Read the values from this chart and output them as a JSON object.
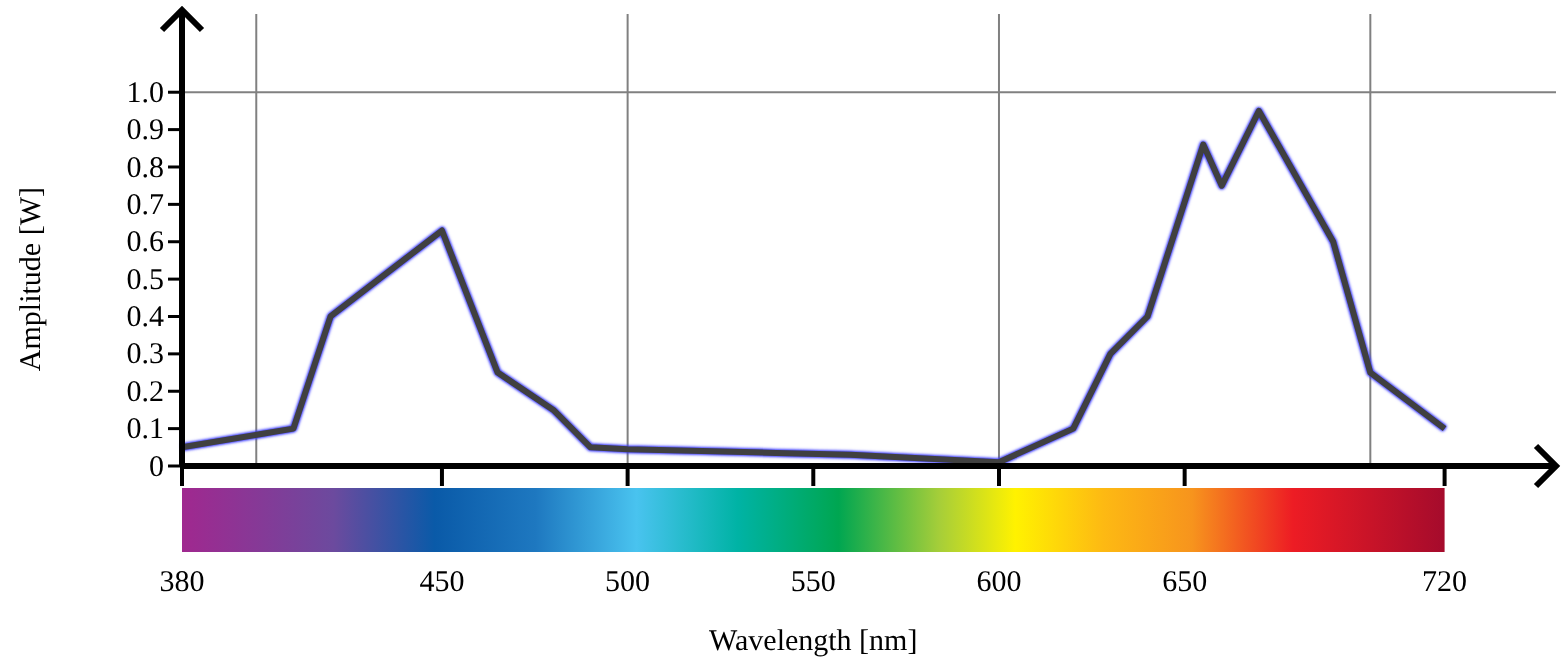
{
  "chart_data": {
    "type": "line",
    "xlabel": "Wavelength [nm]",
    "ylabel": "Amplitude [W]",
    "xlim": [
      380,
      750
    ],
    "ylim": [
      0,
      1.22
    ],
    "xticks": [
      380,
      450,
      500,
      550,
      600,
      650,
      720
    ],
    "yticks": [
      0,
      0.1,
      0.2,
      0.3,
      0.4,
      0.5,
      0.6,
      0.7,
      0.8,
      0.9,
      {
        "value": 1,
        "label": "1.0"
      }
    ],
    "ref_lines": [
      {
        "axis": "x",
        "value": 400,
        "color": "#808080"
      },
      {
        "axis": "x",
        "value": 500,
        "color": "#808080"
      },
      {
        "axis": "x",
        "value": 600,
        "color": "#808080"
      },
      {
        "axis": "x",
        "value": 700,
        "color": "#808080"
      },
      {
        "axis": "y",
        "value": 1,
        "color": "#808080"
      }
    ],
    "series": [
      {
        "color": "#404040",
        "x": [
          380,
          410,
          420,
          450,
          465,
          480,
          490,
          500,
          520,
          540,
          560,
          580,
          600,
          620,
          630,
          640,
          655,
          660,
          670,
          690,
          700,
          720
        ],
        "values": [
          0.05,
          0.1,
          0.4,
          0.63,
          0.25,
          0.15,
          0.05,
          0.045,
          0.04,
          0.035,
          0.03,
          0.02,
          0.01,
          0.1,
          0.3,
          0.4,
          0.86,
          0.75,
          0.95,
          0.6,
          0.25,
          0.1
        ]
      }
    ]
  }
}
